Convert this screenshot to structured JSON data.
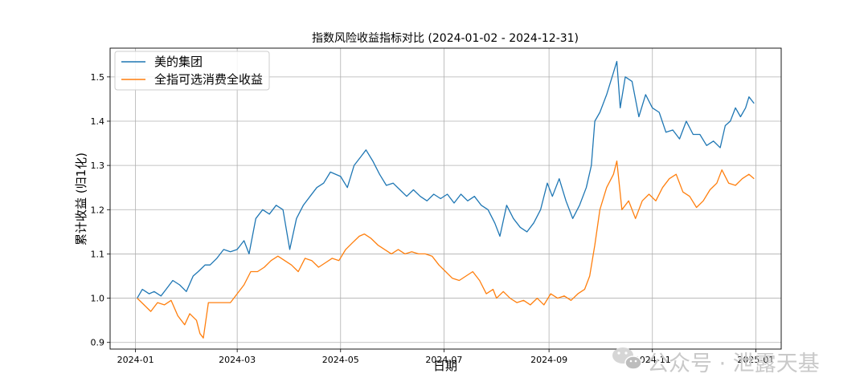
{
  "chart_data": {
    "type": "line",
    "title": "指数风险收益指标对比 (2024-01-02 - 2024-12-31)",
    "xlabel": "日期",
    "ylabel": "累计收益 (归1化)",
    "x_ticks": [
      "2024-01",
      "2024-03",
      "2024-05",
      "2024-07",
      "2024-09",
      "2024-11",
      "2025-01"
    ],
    "y_ticks": [
      "0.9",
      "1.0",
      "1.1",
      "1.2",
      "1.3",
      "1.4",
      "1.5"
    ],
    "xlim": [
      "2023-12-17",
      "2025-01-16"
    ],
    "ylim": [
      0.885,
      1.565
    ],
    "grid": true,
    "legend_position": "top-left",
    "series": [
      {
        "name": "美的集团",
        "color": "#1f77b4",
        "points": [
          [
            "2024-01-02",
            1.0
          ],
          [
            "2024-01-05",
            1.02
          ],
          [
            "2024-01-09",
            1.01
          ],
          [
            "2024-01-12",
            1.015
          ],
          [
            "2024-01-16",
            1.005
          ],
          [
            "2024-01-19",
            1.02
          ],
          [
            "2024-01-23",
            1.04
          ],
          [
            "2024-01-27",
            1.03
          ],
          [
            "2024-01-31",
            1.015
          ],
          [
            "2024-02-04",
            1.05
          ],
          [
            "2024-02-07",
            1.06
          ],
          [
            "2024-02-11",
            1.075
          ],
          [
            "2024-02-14",
            1.075
          ],
          [
            "2024-02-18",
            1.09
          ],
          [
            "2024-02-22",
            1.11
          ],
          [
            "2024-02-26",
            1.105
          ],
          [
            "2024-03-01",
            1.11
          ],
          [
            "2024-03-05",
            1.13
          ],
          [
            "2024-03-08",
            1.1
          ],
          [
            "2024-03-12",
            1.18
          ],
          [
            "2024-03-16",
            1.2
          ],
          [
            "2024-03-20",
            1.19
          ],
          [
            "2024-03-24",
            1.21
          ],
          [
            "2024-03-28",
            1.2
          ],
          [
            "2024-04-01",
            1.11
          ],
          [
            "2024-04-05",
            1.18
          ],
          [
            "2024-04-09",
            1.21
          ],
          [
            "2024-04-13",
            1.23
          ],
          [
            "2024-04-17",
            1.25
          ],
          [
            "2024-04-21",
            1.26
          ],
          [
            "2024-04-25",
            1.285
          ],
          [
            "2024-05-01",
            1.275
          ],
          [
            "2024-05-05",
            1.25
          ],
          [
            "2024-05-09",
            1.3
          ],
          [
            "2024-05-13",
            1.32
          ],
          [
            "2024-05-16",
            1.335
          ],
          [
            "2024-05-20",
            1.31
          ],
          [
            "2024-05-24",
            1.28
          ],
          [
            "2024-05-28",
            1.255
          ],
          [
            "2024-06-01",
            1.26
          ],
          [
            "2024-06-05",
            1.245
          ],
          [
            "2024-06-09",
            1.23
          ],
          [
            "2024-06-13",
            1.245
          ],
          [
            "2024-06-17",
            1.23
          ],
          [
            "2024-06-21",
            1.22
          ],
          [
            "2024-06-25",
            1.235
          ],
          [
            "2024-06-29",
            1.225
          ],
          [
            "2024-07-03",
            1.235
          ],
          [
            "2024-07-07",
            1.215
          ],
          [
            "2024-07-11",
            1.235
          ],
          [
            "2024-07-15",
            1.22
          ],
          [
            "2024-07-19",
            1.23
          ],
          [
            "2024-07-23",
            1.21
          ],
          [
            "2024-07-27",
            1.2
          ],
          [
            "2024-07-31",
            1.17
          ],
          [
            "2024-08-03",
            1.14
          ],
          [
            "2024-08-07",
            1.21
          ],
          [
            "2024-08-11",
            1.18
          ],
          [
            "2024-08-15",
            1.16
          ],
          [
            "2024-08-19",
            1.15
          ],
          [
            "2024-08-23",
            1.17
          ],
          [
            "2024-08-27",
            1.2
          ],
          [
            "2024-08-31",
            1.26
          ],
          [
            "2024-09-03",
            1.23
          ],
          [
            "2024-09-07",
            1.27
          ],
          [
            "2024-09-11",
            1.22
          ],
          [
            "2024-09-15",
            1.18
          ],
          [
            "2024-09-19",
            1.21
          ],
          [
            "2024-09-23",
            1.25
          ],
          [
            "2024-09-26",
            1.3
          ],
          [
            "2024-09-28",
            1.4
          ],
          [
            "2024-10-01",
            1.42
          ],
          [
            "2024-10-05",
            1.46
          ],
          [
            "2024-10-09",
            1.51
          ],
          [
            "2024-10-11",
            1.535
          ],
          [
            "2024-10-13",
            1.43
          ],
          [
            "2024-10-16",
            1.5
          ],
          [
            "2024-10-20",
            1.49
          ],
          [
            "2024-10-24",
            1.41
          ],
          [
            "2024-10-28",
            1.46
          ],
          [
            "2024-11-01",
            1.43
          ],
          [
            "2024-11-05",
            1.42
          ],
          [
            "2024-11-09",
            1.375
          ],
          [
            "2024-11-13",
            1.38
          ],
          [
            "2024-11-17",
            1.36
          ],
          [
            "2024-11-21",
            1.4
          ],
          [
            "2024-11-25",
            1.37
          ],
          [
            "2024-11-29",
            1.37
          ],
          [
            "2024-12-03",
            1.345
          ],
          [
            "2024-12-07",
            1.355
          ],
          [
            "2024-12-11",
            1.34
          ],
          [
            "2024-12-14",
            1.39
          ],
          [
            "2024-12-17",
            1.4
          ],
          [
            "2024-12-20",
            1.43
          ],
          [
            "2024-12-23",
            1.41
          ],
          [
            "2024-12-26",
            1.43
          ],
          [
            "2024-12-28",
            1.455
          ],
          [
            "2024-12-31",
            1.44
          ]
        ]
      },
      {
        "name": "全指可选消费全收益",
        "color": "#ff7f0e",
        "points": [
          [
            "2024-01-02",
            1.0
          ],
          [
            "2024-01-06",
            0.985
          ],
          [
            "2024-01-10",
            0.97
          ],
          [
            "2024-01-14",
            0.99
          ],
          [
            "2024-01-18",
            0.985
          ],
          [
            "2024-01-22",
            0.995
          ],
          [
            "2024-01-26",
            0.96
          ],
          [
            "2024-01-30",
            0.94
          ],
          [
            "2024-02-02",
            0.965
          ],
          [
            "2024-02-06",
            0.95
          ],
          [
            "2024-02-08",
            0.92
          ],
          [
            "2024-02-10",
            0.91
          ],
          [
            "2024-02-13",
            0.99
          ],
          [
            "2024-02-20",
            0.99
          ],
          [
            "2024-02-26",
            0.99
          ],
          [
            "2024-03-01",
            1.01
          ],
          [
            "2024-03-05",
            1.03
          ],
          [
            "2024-03-09",
            1.06
          ],
          [
            "2024-03-13",
            1.06
          ],
          [
            "2024-03-17",
            1.07
          ],
          [
            "2024-03-21",
            1.085
          ],
          [
            "2024-03-25",
            1.095
          ],
          [
            "2024-03-29",
            1.085
          ],
          [
            "2024-04-02",
            1.075
          ],
          [
            "2024-04-06",
            1.06
          ],
          [
            "2024-04-10",
            1.09
          ],
          [
            "2024-04-14",
            1.085
          ],
          [
            "2024-04-18",
            1.07
          ],
          [
            "2024-04-22",
            1.08
          ],
          [
            "2024-04-26",
            1.09
          ],
          [
            "2024-04-30",
            1.085
          ],
          [
            "2024-05-04",
            1.11
          ],
          [
            "2024-05-08",
            1.125
          ],
          [
            "2024-05-12",
            1.14
          ],
          [
            "2024-05-15",
            1.145
          ],
          [
            "2024-05-19",
            1.135
          ],
          [
            "2024-05-23",
            1.12
          ],
          [
            "2024-05-27",
            1.11
          ],
          [
            "2024-05-31",
            1.1
          ],
          [
            "2024-06-04",
            1.11
          ],
          [
            "2024-06-08",
            1.1
          ],
          [
            "2024-06-12",
            1.105
          ],
          [
            "2024-06-16",
            1.1
          ],
          [
            "2024-06-20",
            1.1
          ],
          [
            "2024-06-24",
            1.095
          ],
          [
            "2024-06-28",
            1.075
          ],
          [
            "2024-07-02",
            1.06
          ],
          [
            "2024-07-06",
            1.045
          ],
          [
            "2024-07-10",
            1.04
          ],
          [
            "2024-07-14",
            1.05
          ],
          [
            "2024-07-18",
            1.06
          ],
          [
            "2024-07-22",
            1.04
          ],
          [
            "2024-07-26",
            1.01
          ],
          [
            "2024-07-30",
            1.02
          ],
          [
            "2024-08-01",
            1.0
          ],
          [
            "2024-08-05",
            1.015
          ],
          [
            "2024-08-09",
            1.0
          ],
          [
            "2024-08-13",
            0.99
          ],
          [
            "2024-08-17",
            0.995
          ],
          [
            "2024-08-21",
            0.985
          ],
          [
            "2024-08-25",
            1.0
          ],
          [
            "2024-08-29",
            0.985
          ],
          [
            "2024-09-02",
            1.01
          ],
          [
            "2024-09-06",
            1.0
          ],
          [
            "2024-09-10",
            1.005
          ],
          [
            "2024-09-14",
            0.995
          ],
          [
            "2024-09-18",
            1.01
          ],
          [
            "2024-09-22",
            1.02
          ],
          [
            "2024-09-25",
            1.05
          ],
          [
            "2024-09-28",
            1.12
          ],
          [
            "2024-10-01",
            1.2
          ],
          [
            "2024-10-05",
            1.25
          ],
          [
            "2024-10-09",
            1.28
          ],
          [
            "2024-10-11",
            1.31
          ],
          [
            "2024-10-14",
            1.2
          ],
          [
            "2024-10-18",
            1.22
          ],
          [
            "2024-10-22",
            1.18
          ],
          [
            "2024-10-26",
            1.22
          ],
          [
            "2024-10-30",
            1.235
          ],
          [
            "2024-11-03",
            1.22
          ],
          [
            "2024-11-07",
            1.25
          ],
          [
            "2024-11-11",
            1.27
          ],
          [
            "2024-11-15",
            1.28
          ],
          [
            "2024-11-19",
            1.24
          ],
          [
            "2024-11-23",
            1.23
          ],
          [
            "2024-11-27",
            1.205
          ],
          [
            "2024-12-01",
            1.22
          ],
          [
            "2024-12-05",
            1.245
          ],
          [
            "2024-12-09",
            1.26
          ],
          [
            "2024-12-12",
            1.29
          ],
          [
            "2024-12-16",
            1.26
          ],
          [
            "2024-12-20",
            1.255
          ],
          [
            "2024-12-24",
            1.27
          ],
          [
            "2024-12-28",
            1.28
          ],
          [
            "2024-12-31",
            1.27
          ]
        ]
      }
    ]
  },
  "watermark": {
    "icon": "wechat-icon",
    "text": "公众号 · 泄露天基"
  }
}
